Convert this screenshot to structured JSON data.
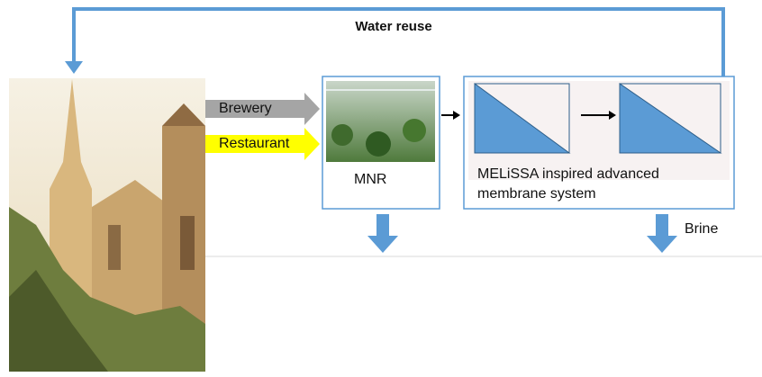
{
  "diagram": {
    "loop_label": "Water reuse",
    "inputs": [
      "Brewery",
      "Restaurant"
    ],
    "nodes": [
      {
        "label": "MNR"
      },
      {
        "label": [
          "MELiSSA inspired advanced",
          "membrane system"
        ]
      }
    ],
    "output_label": "Brine"
  }
}
